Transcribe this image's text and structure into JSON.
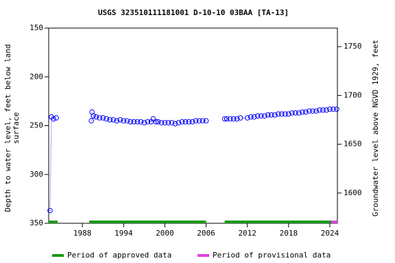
{
  "chart_data": {
    "type": "scatter",
    "title": "USGS 323510111181001 D-10-10 03BAA [TA-13]",
    "ylabel": [
      "Depth to water level, feet below land",
      "surface"
    ],
    "y2label": "Groundwater level above NGVD 1929, feet",
    "xlim": [
      1983.1,
      2025.1
    ],
    "xticks": [
      1988,
      1994,
      2000,
      2006,
      2012,
      2018,
      2024
    ],
    "ylim": [
      150,
      350
    ],
    "y_inverted": true,
    "yticks": [
      150,
      200,
      250,
      300,
      350
    ],
    "y2lim": [
      1569,
      1769
    ],
    "y2ticks": [
      1600,
      1650,
      1700,
      1750
    ],
    "series": [
      {
        "color": "#0000ff",
        "x": [
          1983.3,
          1983.5,
          1983.8,
          1984.2,
          1989.3,
          1989.4,
          1989.6,
          1990.0,
          1990.5,
          1991.0,
          1991.5,
          1992.0,
          1992.5,
          1993.0,
          1993.5,
          1994.0,
          1994.5,
          1995.0,
          1995.5,
          1996.0,
          1996.5,
          1997.0,
          1997.5,
          1998.0,
          1998.3,
          1998.7,
          1999.0,
          1999.5,
          2000.0,
          2000.5,
          2001.0,
          2001.5,
          2002.0,
          2002.5,
          2003.0,
          2003.5,
          2004.0,
          2004.5,
          2005.0,
          2005.5,
          2006.0,
          2008.7,
          2009.0,
          2009.5,
          2010.0,
          2010.5,
          2011.0,
          2012.0,
          2012.5,
          2013.0,
          2013.5,
          2014.0,
          2014.5,
          2015.0,
          2015.5,
          2016.0,
          2016.5,
          2017.0,
          2017.5,
          2018.0,
          2018.5,
          2019.0,
          2019.5,
          2020.0,
          2020.5,
          2021.0,
          2021.5,
          2022.0,
          2022.5,
          2023.0,
          2023.5,
          2024.0,
          2024.5,
          2025.0
        ],
        "values": [
          337,
          241,
          243,
          242,
          245,
          236,
          240,
          241,
          242,
          242,
          243,
          244,
          244,
          245,
          244,
          245,
          245,
          246,
          246,
          246,
          246,
          247,
          246,
          246,
          243,
          246,
          246,
          247,
          247,
          247,
          247,
          248,
          247,
          246,
          246,
          246,
          246,
          245,
          245,
          245,
          245,
          243,
          243,
          243,
          243,
          243,
          242,
          242,
          241,
          241,
          240,
          240,
          240,
          239,
          239,
          239,
          238,
          238,
          238,
          238,
          237,
          237,
          237,
          236,
          236,
          235,
          235,
          235,
          234,
          234,
          234,
          233,
          233,
          233
        ]
      }
    ],
    "periods": [
      {
        "name": "Period of approved data",
        "color": "#1a9a1a",
        "ranges": [
          [
            1983.1,
            1984.4
          ],
          [
            1989.0,
            2006.0
          ],
          [
            2008.7,
            2024.2
          ]
        ]
      },
      {
        "name": "Period of provisional data",
        "color": "#e040e0",
        "ranges": [
          [
            2024.2,
            2025.1
          ]
        ]
      }
    ]
  }
}
